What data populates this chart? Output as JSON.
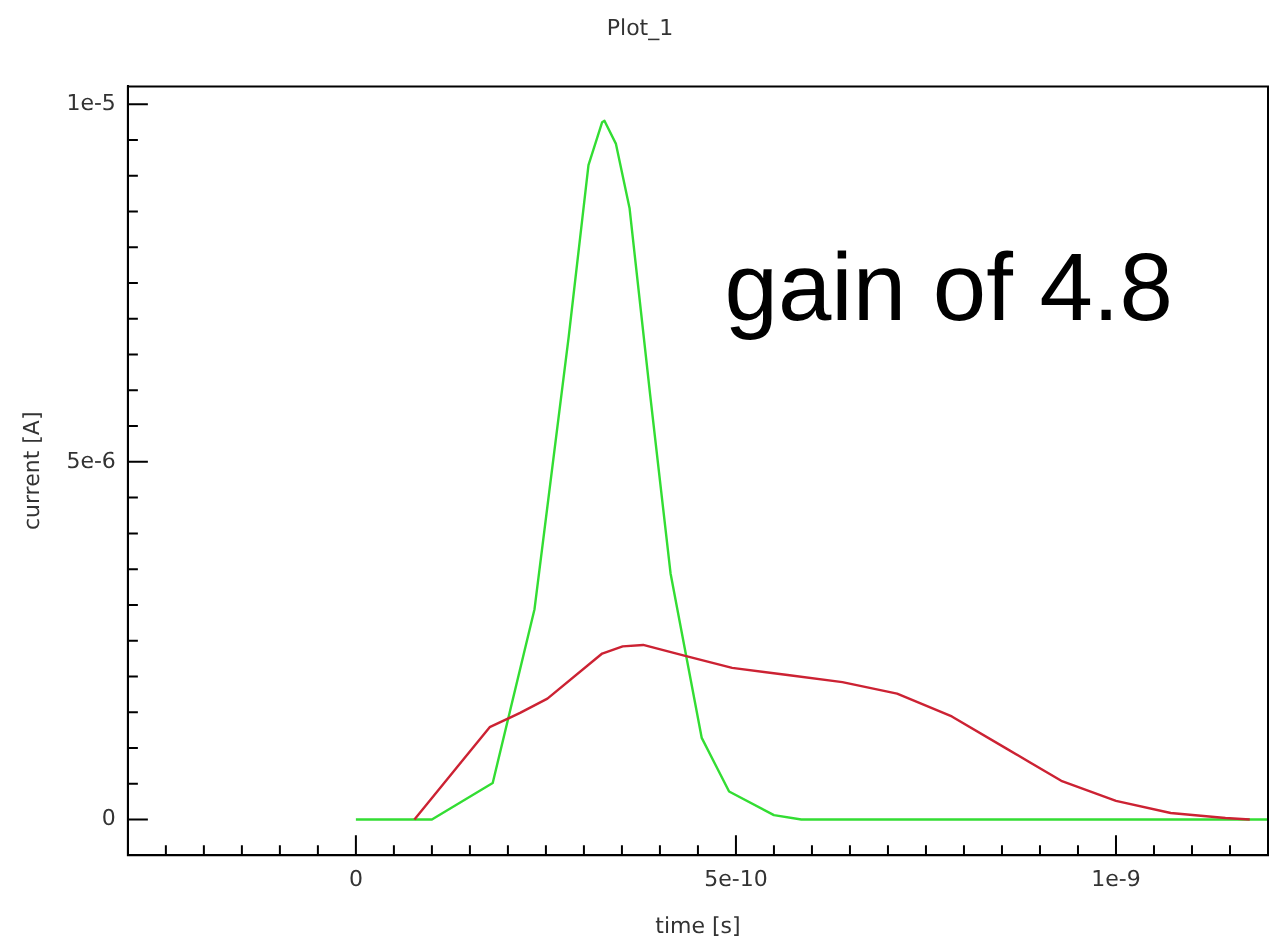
{
  "chart_data": {
    "type": "line",
    "title": "Plot_1",
    "xlabel": "time [s]",
    "ylabel": "current [A]",
    "annotations": [
      "gain of 4.8"
    ],
    "xlim": [
      -3e-10,
      1.2e-09
    ],
    "ylim": [
      -5e-07,
      1.025e-05
    ],
    "xticks": [
      {
        "value": -2.5e-10,
        "label": null
      },
      {
        "value": -2e-10,
        "label": null
      },
      {
        "value": -1.5e-10,
        "label": null
      },
      {
        "value": -1e-10,
        "label": null
      },
      {
        "value": -5e-11,
        "label": null
      },
      0,
      {
        "value": 5e-11,
        "label": null
      },
      {
        "value": 1e-10,
        "label": null
      },
      {
        "value": 1.5e-10,
        "label": null
      },
      {
        "value": 2e-10,
        "label": null
      },
      {
        "value": 2.5e-10,
        "label": null
      },
      {
        "value": 3e-10,
        "label": null
      },
      {
        "value": 3.5e-10,
        "label": null
      },
      {
        "value": 4e-10,
        "label": null
      },
      {
        "value": 4.5e-10,
        "label": null
      },
      {
        "value": 5e-10,
        "label": "5e-10"
      },
      {
        "value": 5.5e-10,
        "label": null
      },
      {
        "value": 6e-10,
        "label": null
      },
      {
        "value": 6.5e-10,
        "label": null
      },
      {
        "value": 7e-10,
        "label": null
      },
      {
        "value": 7.5e-10,
        "label": null
      },
      {
        "value": 8e-10,
        "label": null
      },
      {
        "value": 8.5e-10,
        "label": null
      },
      {
        "value": 9e-10,
        "label": null
      },
      {
        "value": 9.5e-10,
        "label": null
      },
      {
        "value": 1e-09,
        "label": "1e-9"
      },
      {
        "value": 1.05e-09,
        "label": null
      },
      {
        "value": 1.1e-09,
        "label": null
      },
      {
        "value": 1.15e-09,
        "label": null
      }
    ],
    "yticks": [
      0,
      {
        "value": 5e-07,
        "label": null
      },
      {
        "value": 1e-06,
        "label": null
      },
      {
        "value": 1.5e-06,
        "label": null
      },
      {
        "value": 2e-06,
        "label": null
      },
      {
        "value": 2.5e-06,
        "label": null
      },
      {
        "value": 3e-06,
        "label": null
      },
      {
        "value": 3.5e-06,
        "label": null
      },
      {
        "value": 4e-06,
        "label": null
      },
      {
        "value": 4.5e-06,
        "label": null
      },
      {
        "value": 5e-06,
        "label": "5e-6"
      },
      {
        "value": 5.5e-06,
        "label": null
      },
      {
        "value": 6e-06,
        "label": null
      },
      {
        "value": 6.5e-06,
        "label": null
      },
      {
        "value": 7e-06,
        "label": null
      },
      {
        "value": 7.5e-06,
        "label": null
      },
      {
        "value": 8e-06,
        "label": null
      },
      {
        "value": 8.5e-06,
        "label": null
      },
      {
        "value": 9e-06,
        "label": null
      },
      {
        "value": 9.5e-06,
        "label": null
      },
      {
        "value": 1e-05,
        "label": "1e-5"
      }
    ],
    "series": [
      {
        "color": "#cc2233",
        "x": [
          7.7e-11,
          1.76e-10,
          2.16e-10,
          2.52e-10,
          3.24e-10,
          3.51e-10,
          3.78e-10,
          4.32e-10,
          4.95e-10,
          5.68e-10,
          6.4e-10,
          7.12e-10,
          7.84e-10,
          8.56e-10,
          9.28e-10,
          1e-09,
          1.072e-09,
          1.144e-09,
          1.176e-09
        ],
        "values": [
          0,
          1.29e-06,
          1.49e-06,
          1.69e-06,
          2.32e-06,
          2.42e-06,
          2.44e-06,
          2.29e-06,
          2.12e-06,
          2.02e-06,
          1.92e-06,
          1.76e-06,
          1.44e-06,
          9.9e-07,
          5.4e-07,
          2.6e-07,
          9e-08,
          2e-08,
          0
        ]
      },
      {
        "color": "#33dd33",
        "x": [
          0,
          1e-10,
          1.8e-10,
          2.35e-10,
          2.8e-10,
          3.06e-10,
          3.24e-10,
          3.27e-10,
          3.42e-10,
          3.6e-10,
          3.87e-10,
          4.14e-10,
          4.55e-10,
          4.91e-10,
          5.5e-10,
          5.86e-10,
          1.2e-09
        ],
        "values": [
          0,
          0,
          5.1e-07,
          2.94e-06,
          6.75e-06,
          9.15e-06,
          9.75e-06,
          9.77e-06,
          9.45e-06,
          8.55e-06,
          5.95e-06,
          3.44e-06,
          1.14e-06,
          3.9e-07,
          6e-08,
          0,
          0
        ]
      }
    ]
  }
}
